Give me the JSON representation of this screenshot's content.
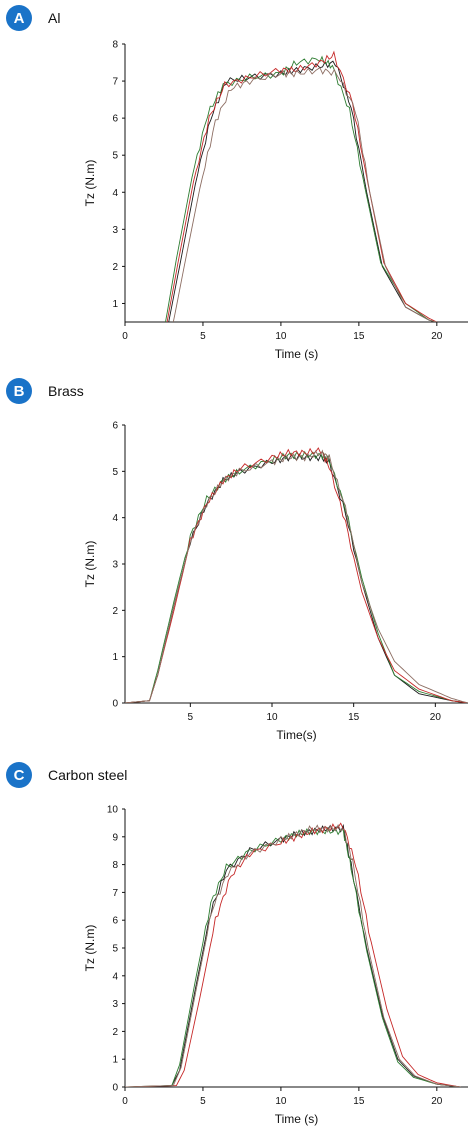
{
  "colors": {
    "badge": "#1a73c8",
    "series": [
      "#1a1a1a",
      "#2e7d32",
      "#c62828",
      "#8d6e63"
    ]
  },
  "chart_data": [
    {
      "type": "line",
      "label": "A",
      "title": "Al",
      "xlabel": "Time (s)",
      "ylabel": "Tz (N.m)",
      "xlim": [
        0,
        22
      ],
      "ylim": [
        0.5,
        8
      ],
      "xticks": [
        0,
        5,
        10,
        15,
        20
      ],
      "yticks": [
        1,
        2,
        3,
        4,
        5,
        6,
        7,
        8
      ],
      "grid": false,
      "series": [
        {
          "x": [
            2.8,
            3.5,
            4.5,
            5.5,
            6.5,
            8,
            10,
            11,
            12.5,
            13.5,
            14.5,
            15.5,
            16.5,
            18,
            19.5,
            20
          ],
          "y": [
            0.5,
            2.0,
            4.2,
            6.0,
            7.0,
            7.1,
            7.2,
            7.3,
            7.4,
            7.5,
            6.3,
            4.0,
            2.0,
            0.9,
            0.55,
            0.5
          ]
        },
        {
          "x": [
            2.6,
            3.3,
            4.3,
            5.3,
            6.3,
            8,
            10,
            11,
            12.5,
            13.3,
            14.4,
            15.4,
            16.4,
            18,
            19.5,
            20
          ],
          "y": [
            0.5,
            2.2,
            4.4,
            6.1,
            6.9,
            7.1,
            7.2,
            7.5,
            7.6,
            7.4,
            6.2,
            4.1,
            2.1,
            1.0,
            0.55,
            0.5
          ]
        },
        {
          "x": [
            2.7,
            3.4,
            4.4,
            5.4,
            6.4,
            8,
            10,
            11,
            12.5,
            13.4,
            14.6,
            15.6,
            16.6,
            18,
            19.5,
            20
          ],
          "y": [
            0.5,
            2.1,
            4.3,
            6.0,
            6.9,
            7.1,
            7.3,
            7.3,
            7.5,
            7.7,
            6.4,
            4.2,
            2.1,
            1.0,
            0.6,
            0.5
          ]
        },
        {
          "x": [
            3.1,
            3.8,
            4.8,
            5.8,
            6.8,
            8,
            10,
            11,
            12.5,
            13.6,
            14.8,
            15.7,
            16.7,
            18,
            19.5,
            20
          ],
          "y": [
            0.5,
            2.0,
            4.1,
            5.9,
            6.8,
            7.0,
            7.2,
            7.2,
            7.3,
            7.2,
            6.2,
            4.0,
            2.0,
            0.9,
            0.55,
            0.5
          ]
        }
      ]
    },
    {
      "type": "line",
      "label": "B",
      "title": "Brass",
      "xlabel": "Time(s)",
      "ylabel": "Tz (N.m)",
      "xlim": [
        1,
        22
      ],
      "ylim": [
        0,
        6
      ],
      "xticks": [
        5,
        10,
        15,
        20
      ],
      "yticks": [
        0,
        1,
        2,
        3,
        4,
        5,
        6
      ],
      "grid": false,
      "series": [
        {
          "x": [
            1,
            2.5,
            3,
            4,
            5,
            6,
            7,
            8,
            10,
            11,
            12,
            13,
            13.5,
            14.5,
            15.5,
            16.5,
            17.5,
            19,
            21,
            22
          ],
          "y": [
            0,
            0.05,
            0.6,
            2.1,
            3.5,
            4.3,
            4.8,
            5.0,
            5.2,
            5.3,
            5.3,
            5.3,
            5.2,
            4.1,
            2.6,
            1.4,
            0.6,
            0.2,
            0.05,
            0
          ]
        },
        {
          "x": [
            1,
            2.5,
            3,
            4,
            5,
            6,
            7,
            8,
            10,
            11,
            12,
            13,
            13.5,
            14.5,
            15.5,
            16.5,
            17.5,
            19,
            21,
            22
          ],
          "y": [
            0,
            0.05,
            0.7,
            2.2,
            3.6,
            4.4,
            4.8,
            5.0,
            5.25,
            5.35,
            5.35,
            5.35,
            5.25,
            4.2,
            2.7,
            1.5,
            0.6,
            0.25,
            0.05,
            0
          ]
        },
        {
          "x": [
            1,
            2.5,
            3,
            4,
            5,
            6,
            7,
            8,
            10,
            11,
            12,
            13,
            13.5,
            14.5,
            15.5,
            16.5,
            17.5,
            19,
            21,
            22
          ],
          "y": [
            0,
            0.05,
            0.6,
            2.0,
            3.5,
            4.3,
            4.8,
            5.05,
            5.3,
            5.4,
            5.4,
            5.45,
            5.1,
            3.9,
            2.4,
            1.4,
            0.7,
            0.3,
            0.05,
            0
          ]
        },
        {
          "x": [
            1,
            2.5,
            3,
            4,
            5,
            6,
            7,
            8,
            10,
            11,
            12,
            13,
            13.5,
            14.5,
            15.5,
            16.5,
            17.5,
            19,
            21,
            22
          ],
          "y": [
            0,
            0.05,
            0.6,
            2.1,
            3.5,
            4.3,
            4.8,
            5.0,
            5.2,
            5.3,
            5.3,
            5.4,
            5.3,
            4.2,
            2.6,
            1.6,
            0.9,
            0.4,
            0.1,
            0
          ]
        }
      ]
    },
    {
      "type": "line",
      "label": "C",
      "title": "Carbon steel",
      "xlabel": "Time (s)",
      "ylabel": "Tz (N.m)",
      "xlim": [
        0,
        22
      ],
      "ylim": [
        0,
        10
      ],
      "xticks": [
        0,
        5,
        10,
        15,
        20
      ],
      "yticks": [
        0,
        1,
        2,
        3,
        4,
        5,
        6,
        7,
        8,
        9,
        10
      ],
      "grid": false,
      "series": [
        {
          "x": [
            0,
            3,
            3.5,
            4.5,
            5.5,
            6.5,
            8,
            10,
            11,
            12,
            13,
            14,
            14.5,
            15.5,
            16.5,
            17.5,
            18.5,
            20,
            21.5
          ],
          "y": [
            0,
            0.05,
            0.6,
            3.5,
            6.3,
            7.8,
            8.5,
            8.9,
            9.1,
            9.2,
            9.3,
            9.3,
            8.0,
            5.0,
            2.6,
            1.0,
            0.4,
            0.1,
            0
          ]
        },
        {
          "x": [
            0,
            3,
            3.5,
            4.5,
            5.5,
            6.5,
            8,
            10,
            11,
            12,
            13,
            14,
            14.5,
            15.5,
            16.5,
            17.5,
            18.5,
            20,
            21.5
          ],
          "y": [
            0,
            0.05,
            0.8,
            3.8,
            6.6,
            7.9,
            8.5,
            8.9,
            9.1,
            9.2,
            9.2,
            9.2,
            7.9,
            4.9,
            2.5,
            0.9,
            0.35,
            0.1,
            0
          ]
        },
        {
          "x": [
            0,
            3.3,
            3.8,
            4.8,
            5.8,
            6.8,
            8,
            10,
            11,
            12,
            13,
            14,
            14.8,
            15.8,
            16.8,
            17.8,
            18.8,
            20,
            21.5
          ],
          "y": [
            0,
            0.05,
            0.6,
            3.2,
            6.0,
            7.6,
            8.4,
            8.8,
            9.0,
            9.2,
            9.3,
            9.4,
            8.0,
            5.2,
            2.8,
            1.1,
            0.45,
            0.15,
            0
          ]
        },
        {
          "x": [
            0,
            3.1,
            3.6,
            4.6,
            5.6,
            6.6,
            8,
            10,
            11,
            12,
            13,
            14,
            14.6,
            15.6,
            16.6,
            17.6,
            18.6,
            20,
            21.5
          ],
          "y": [
            0,
            0.05,
            0.7,
            3.6,
            6.4,
            7.7,
            8.4,
            8.9,
            9.1,
            9.3,
            9.3,
            9.3,
            8.1,
            5.0,
            2.5,
            1.0,
            0.4,
            0.1,
            0
          ]
        }
      ]
    }
  ]
}
